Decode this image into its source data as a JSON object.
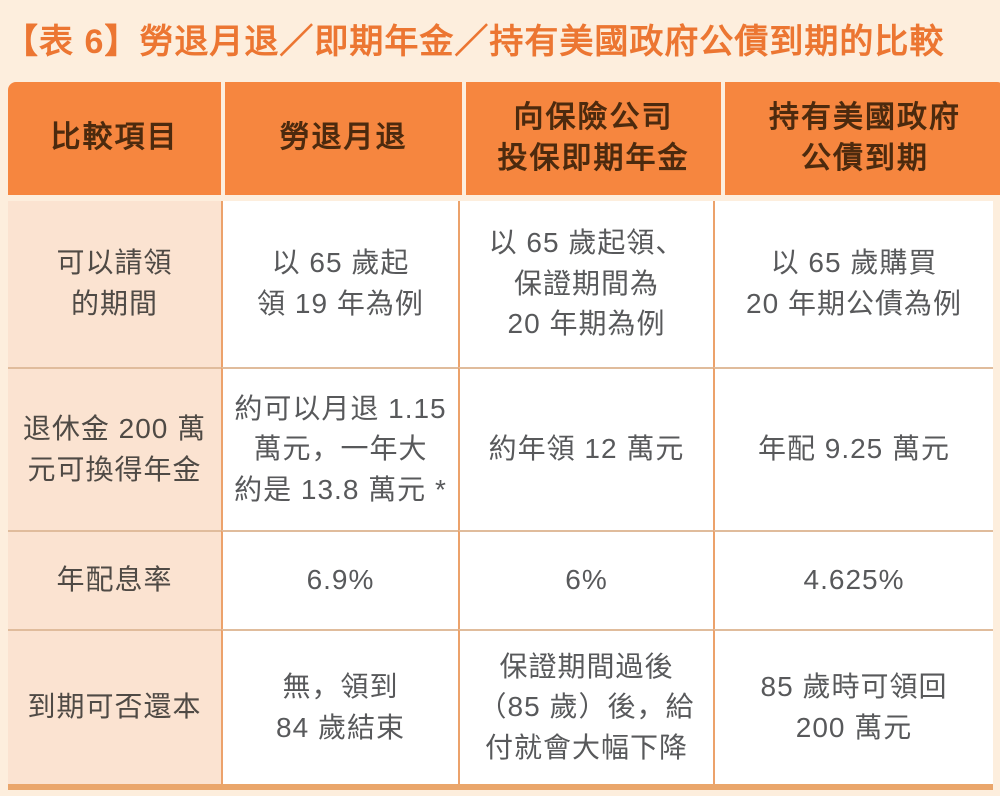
{
  "title": "【表 6】勞退月退／即期年金／持有美國政府公債到期的比較",
  "colors": {
    "page_background": "#FDEEDD",
    "title_text": "#EC7632",
    "header_background": "#F6863F",
    "header_text": "#4C2A0E",
    "label_cell_background": "#FBE3D1",
    "data_cell_background": "#FFFFFF",
    "body_text": "#58595B",
    "vertical_grid_line": "#ECA26B",
    "horizontal_grid_line": "#E0BC9C",
    "bottom_border": "#EAA66B"
  },
  "table": {
    "headers": [
      "比較項目",
      "勞退月退",
      "向保險公司\n投保即期年金",
      "持有美國政府\n公債到期"
    ],
    "rows": [
      {
        "label": "可以請領\n的期間",
        "cells": [
          "以 65 歲起\n領 19 年為例",
          "以 65 歲起領、\n保證期間為\n20 年期為例",
          "以 65 歲購買\n20 年期公債為例"
        ]
      },
      {
        "label": "退休金 200 萬\n元可換得年金",
        "cells": [
          "約可以月退 1.15\n萬元，一年大\n約是 13.8 萬元 *",
          "約年領 12 萬元",
          "年配 9.25 萬元"
        ]
      },
      {
        "label": "年配息率",
        "cells": [
          "6.9%",
          "6%",
          "4.625%"
        ]
      },
      {
        "label": "到期可否還本",
        "cells": [
          "無，領到\n84 歲結束",
          "保證期間過後\n（85 歲）後，給\n付就會大幅下降",
          "85 歲時可領回\n200 萬元"
        ]
      }
    ]
  }
}
